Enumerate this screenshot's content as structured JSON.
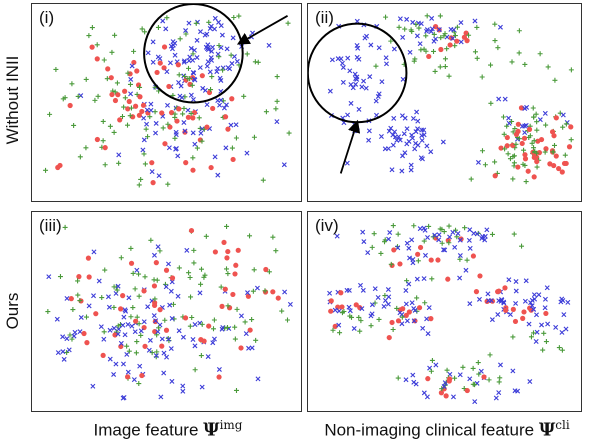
{
  "figure": {
    "row_labels": [
      "Without INII",
      "Ours"
    ],
    "col_labels": [
      {
        "text": "Image feature ",
        "symbol": "Ψ",
        "sup": "img"
      },
      {
        "text": "Non-imaging clinical feature ",
        "symbol": "Ψ",
        "sup": "cli"
      }
    ],
    "panel_labels": [
      "(i)",
      "(ii)",
      "(iii)",
      "(iv)"
    ]
  },
  "chart_data": [
    {
      "type": "scatter",
      "panel": "(i)",
      "title": "",
      "xlabel": "Image feature Ψimg",
      "ylabel": "Without INII",
      "grid": false,
      "markers": {
        "a": "red-dot",
        "b": "green-plus",
        "c": "blue-x"
      },
      "colors": {
        "a": "#ef5350",
        "b": "#4a9a3a",
        "c": "#3c3cd8"
      },
      "clusters": [
        {
          "marker": "c",
          "cx": 0.62,
          "cy": 0.24,
          "sx": 0.1,
          "sy": 0.12,
          "n": 80
        },
        {
          "marker": "c",
          "cx": 0.56,
          "cy": 0.64,
          "sx": 0.17,
          "sy": 0.16,
          "n": 55
        },
        {
          "marker": "a",
          "cx": 0.47,
          "cy": 0.54,
          "sx": 0.19,
          "sy": 0.19,
          "n": 60
        },
        {
          "marker": "b",
          "cx": 0.45,
          "cy": 0.45,
          "sx": 0.25,
          "sy": 0.24,
          "n": 110
        }
      ],
      "annotations": [
        {
          "type": "circle",
          "cx": 0.6,
          "cy": 0.25,
          "r": 0.17
        },
        {
          "type": "arrow",
          "x1": 0.95,
          "y1": 0.06,
          "x2": 0.77,
          "y2": 0.2
        }
      ]
    },
    {
      "type": "scatter",
      "panel": "(ii)",
      "title": "",
      "xlabel": "Non-imaging clinical feature Ψcli",
      "ylabel": "Without INII",
      "grid": false,
      "markers": {
        "a": "red-dot",
        "b": "green-plus",
        "c": "blue-x"
      },
      "colors": {
        "a": "#ef5350",
        "b": "#4a9a3a",
        "c": "#3c3cd8"
      },
      "clusters": [
        {
          "marker": "c",
          "cx": 0.2,
          "cy": 0.37,
          "sx": 0.08,
          "sy": 0.13,
          "n": 50
        },
        {
          "marker": "c",
          "cx": 0.37,
          "cy": 0.71,
          "sx": 0.08,
          "sy": 0.07,
          "n": 50
        },
        {
          "marker": "b",
          "cx": 0.5,
          "cy": 0.18,
          "sx": 0.12,
          "sy": 0.08,
          "n": 40
        },
        {
          "marker": "c",
          "cx": 0.44,
          "cy": 0.12,
          "sx": 0.08,
          "sy": 0.06,
          "n": 25
        },
        {
          "marker": "a",
          "cx": 0.52,
          "cy": 0.2,
          "sx": 0.05,
          "sy": 0.05,
          "n": 10
        },
        {
          "marker": "b",
          "cx": 0.83,
          "cy": 0.7,
          "sx": 0.1,
          "sy": 0.12,
          "n": 60
        },
        {
          "marker": "a",
          "cx": 0.85,
          "cy": 0.72,
          "sx": 0.08,
          "sy": 0.1,
          "n": 40
        },
        {
          "marker": "c",
          "cx": 0.78,
          "cy": 0.58,
          "sx": 0.07,
          "sy": 0.07,
          "n": 15
        },
        {
          "marker": "b",
          "cx": 0.82,
          "cy": 0.3,
          "sx": 0.08,
          "sy": 0.06,
          "n": 10
        }
      ],
      "annotations": [
        {
          "type": "circle",
          "cx": 0.18,
          "cy": 0.35,
          "r": 0.17
        },
        {
          "type": "arrow",
          "x1": 0.12,
          "y1": 0.86,
          "x2": 0.18,
          "y2": 0.6
        }
      ]
    },
    {
      "type": "scatter",
      "panel": "(iii)",
      "title": "",
      "xlabel": "Image feature Ψimg",
      "ylabel": "Ours",
      "grid": false,
      "markers": {
        "a": "red-dot",
        "b": "green-plus",
        "c": "blue-x"
      },
      "colors": {
        "a": "#ef5350",
        "b": "#4a9a3a",
        "c": "#3c3cd8"
      },
      "clusters": [
        {
          "marker": "c",
          "cx": 0.42,
          "cy": 0.56,
          "sx": 0.2,
          "sy": 0.18,
          "n": 110
        },
        {
          "marker": "b",
          "cx": 0.53,
          "cy": 0.46,
          "sx": 0.21,
          "sy": 0.22,
          "n": 100
        },
        {
          "marker": "a",
          "cx": 0.5,
          "cy": 0.5,
          "sx": 0.25,
          "sy": 0.2,
          "n": 55
        }
      ],
      "annotations": []
    },
    {
      "type": "scatter",
      "panel": "(iv)",
      "title": "",
      "xlabel": "Non-imaging clinical feature Ψcli",
      "ylabel": "Ours",
      "grid": false,
      "markers": {
        "a": "red-dot",
        "b": "green-plus",
        "c": "blue-x"
      },
      "colors": {
        "a": "#ef5350",
        "b": "#4a9a3a",
        "c": "#3c3cd8"
      },
      "clusters": [
        {
          "marker": "c",
          "cx": 0.46,
          "cy": 0.15,
          "sx": 0.14,
          "sy": 0.07,
          "n": 40
        },
        {
          "marker": "b",
          "cx": 0.46,
          "cy": 0.17,
          "sx": 0.13,
          "sy": 0.08,
          "n": 30
        },
        {
          "marker": "a",
          "cx": 0.44,
          "cy": 0.2,
          "sx": 0.1,
          "sy": 0.06,
          "n": 12
        },
        {
          "marker": "c",
          "cx": 0.15,
          "cy": 0.48,
          "sx": 0.06,
          "sy": 0.08,
          "n": 15
        },
        {
          "marker": "a",
          "cx": 0.13,
          "cy": 0.44,
          "sx": 0.04,
          "sy": 0.06,
          "n": 8
        },
        {
          "marker": "b",
          "cx": 0.14,
          "cy": 0.55,
          "sx": 0.05,
          "sy": 0.06,
          "n": 10
        },
        {
          "marker": "c",
          "cx": 0.35,
          "cy": 0.46,
          "sx": 0.07,
          "sy": 0.08,
          "n": 25
        },
        {
          "marker": "a",
          "cx": 0.38,
          "cy": 0.52,
          "sx": 0.05,
          "sy": 0.05,
          "n": 10
        },
        {
          "marker": "b",
          "cx": 0.33,
          "cy": 0.47,
          "sx": 0.05,
          "sy": 0.06,
          "n": 10
        },
        {
          "marker": "c",
          "cx": 0.72,
          "cy": 0.45,
          "sx": 0.07,
          "sy": 0.07,
          "n": 30
        },
        {
          "marker": "a",
          "cx": 0.7,
          "cy": 0.42,
          "sx": 0.04,
          "sy": 0.05,
          "n": 8
        },
        {
          "marker": "c",
          "cx": 0.89,
          "cy": 0.56,
          "sx": 0.05,
          "sy": 0.07,
          "n": 20
        },
        {
          "marker": "b",
          "cx": 0.87,
          "cy": 0.62,
          "sx": 0.05,
          "sy": 0.05,
          "n": 8
        },
        {
          "marker": "a",
          "cx": 0.78,
          "cy": 0.5,
          "sx": 0.04,
          "sy": 0.05,
          "n": 8
        },
        {
          "marker": "c",
          "cx": 0.55,
          "cy": 0.86,
          "sx": 0.12,
          "sy": 0.05,
          "n": 25
        },
        {
          "marker": "b",
          "cx": 0.52,
          "cy": 0.83,
          "sx": 0.1,
          "sy": 0.05,
          "n": 20
        },
        {
          "marker": "a",
          "cx": 0.5,
          "cy": 0.85,
          "sx": 0.06,
          "sy": 0.04,
          "n": 8
        }
      ],
      "annotations": []
    }
  ]
}
